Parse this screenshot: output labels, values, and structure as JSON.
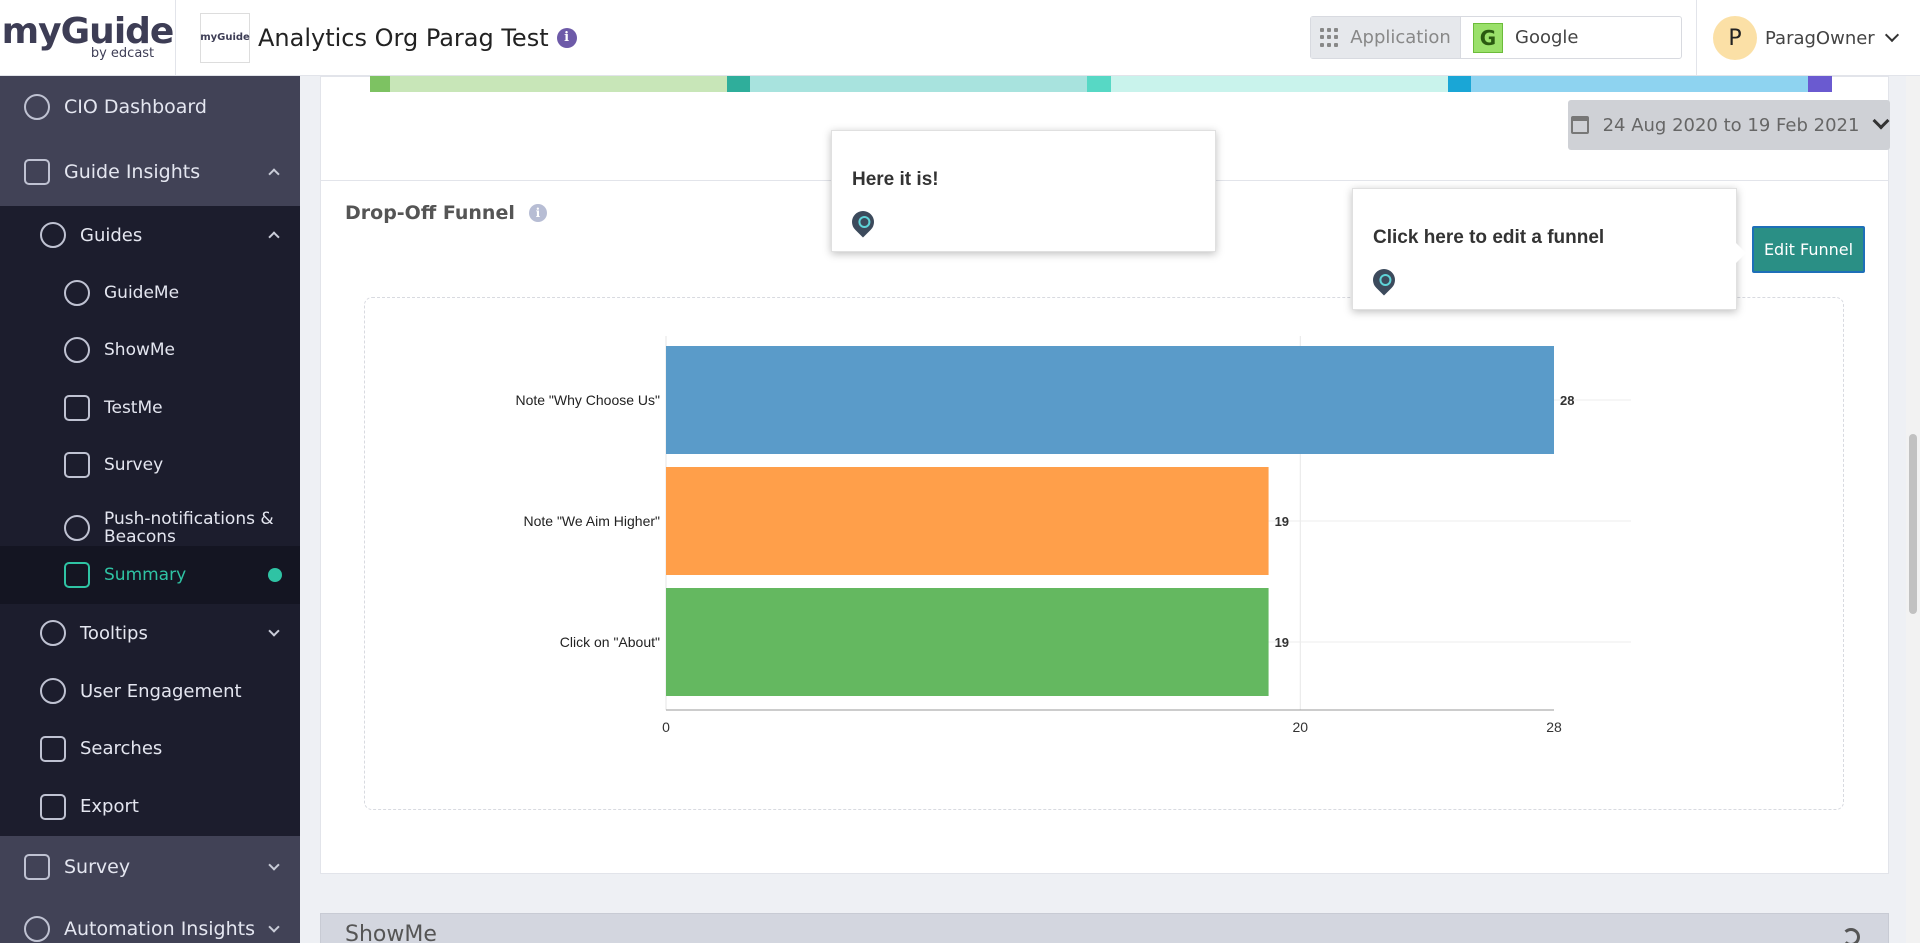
{
  "header": {
    "logo_main": "myGuide",
    "logo_sub": "by edcast",
    "org_logo_text": "myGuide",
    "org_title": "Analytics Org Parag Test",
    "info_glyph": "i",
    "application_label": "Application",
    "application_value": "Google",
    "application_badge": "G",
    "user_initial": "P",
    "user_name": "ParagOwner"
  },
  "sidebar": {
    "cio": "CIO Dashboard",
    "guide_insights": "Guide Insights",
    "guides": "Guides",
    "guideme": "GuideMe",
    "showme": "ShowMe",
    "testme": "TestMe",
    "survey_sub": "Survey",
    "push_line1": "Push-notifications &",
    "push_line2": "Beacons",
    "summary": "Summary",
    "tooltips": "Tooltips",
    "user_engagement": "User Engagement",
    "searches": "Searches",
    "export": "Export",
    "survey": "Survey",
    "automation": "Automation Insights"
  },
  "main": {
    "date_range": "24 Aug 2020 to 19 Feb 2021",
    "funnel_title": "Drop-Off Funnel",
    "info_glyph": "i",
    "edit_button": "Edit Funnel",
    "showme_title": "ShowMe"
  },
  "tooltips": {
    "tip1": "Here it is!",
    "tip2": "Click here to edit a funnel"
  },
  "flow_colors": [
    "#7dc262",
    "#c8e6b8",
    "#2fae9b",
    "#a8e3de",
    "#57d8c5",
    "#c9f3ec",
    "#1aa6d6",
    "#8ed3f0",
    "#6a5ad0"
  ],
  "chart_data": {
    "type": "bar",
    "orientation": "horizontal",
    "categories": [
      "Note \"Why Choose Us\"",
      "Note \"We Aim Higher\"",
      "Click on \"About\""
    ],
    "values": [
      28,
      19,
      19
    ],
    "colors": [
      "#5a9bc9",
      "#ff9f4a",
      "#64b860"
    ],
    "xticks": [
      0,
      20,
      28
    ],
    "xlim": [
      0,
      28
    ]
  }
}
